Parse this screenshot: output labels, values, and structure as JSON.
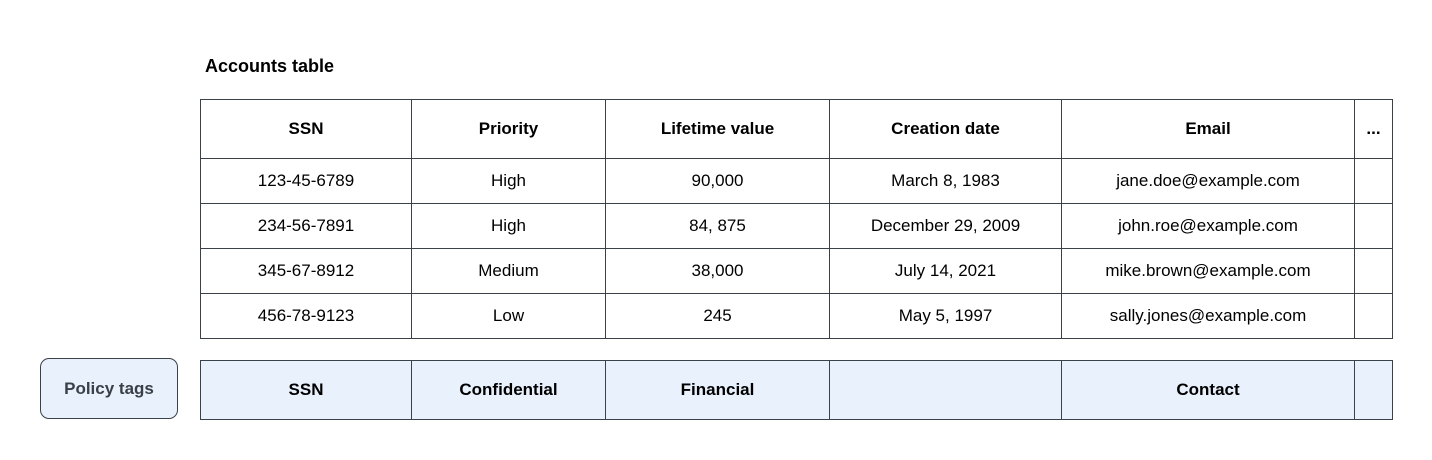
{
  "title": "Accounts table",
  "table": {
    "columns": [
      "SSN",
      "Priority",
      "Lifetime value",
      "Creation date",
      "Email",
      "..."
    ],
    "rows": [
      [
        "123-45-6789",
        "High",
        "90,000",
        "March 8, 1983",
        "jane.doe@example.com",
        ""
      ],
      [
        "234-56-7891",
        "High",
        "84, 875",
        "December 29, 2009",
        "john.roe@example.com",
        ""
      ],
      [
        "345-67-8912",
        "Medium",
        "38,000",
        "July 14, 2021",
        "mike.brown@example.com",
        ""
      ],
      [
        "456-78-9123",
        "Low",
        "245",
        "May 5, 1997",
        "sally.jones@example.com",
        ""
      ]
    ]
  },
  "policy": {
    "button_label": "Policy tags",
    "tags": [
      "SSN",
      "Confidential",
      "Financial",
      "",
      "Contact",
      ""
    ]
  },
  "colors": {
    "table_border": "#3b4149",
    "tag_fill": "#e9f1fc",
    "button_text": "#3a4045",
    "body_text": "#000000"
  }
}
